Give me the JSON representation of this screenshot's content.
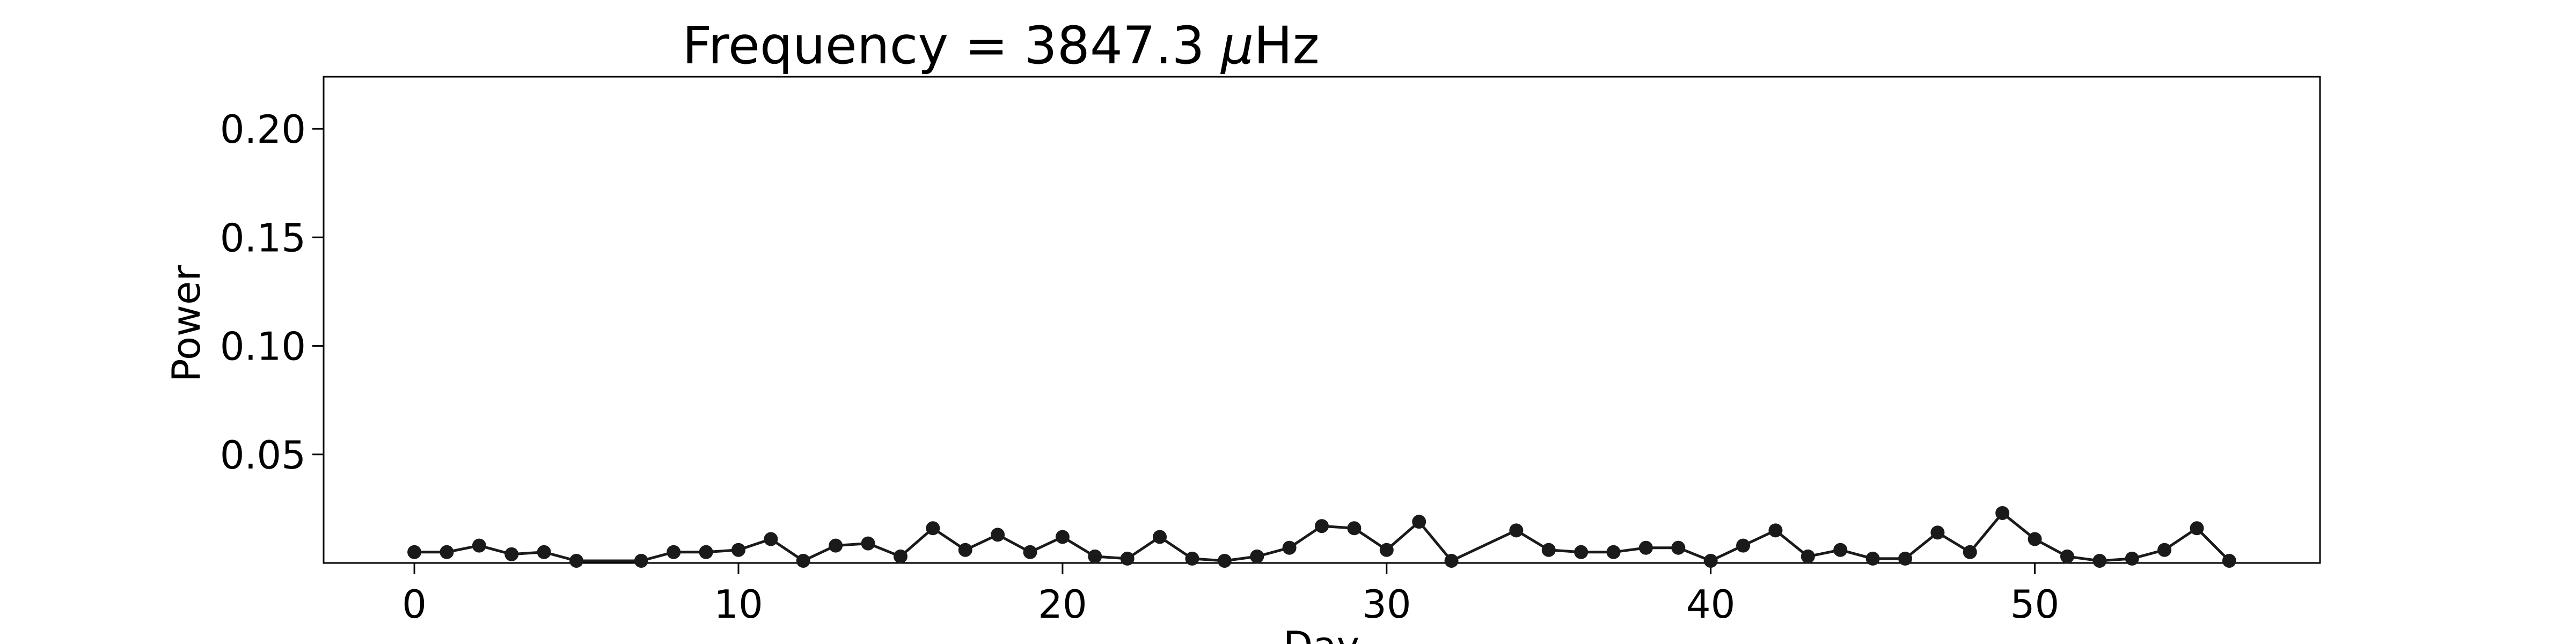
{
  "chart_data": {
    "type": "line",
    "title_prefix": "Frequency = 3847.3 ",
    "title_mu": "μ",
    "title_suffix": "Hz",
    "xlabel": "Day",
    "ylabel": "Power",
    "xlim": [
      -2.8,
      58.8
    ],
    "ylim": [
      0,
      0.224
    ],
    "xticks": [
      0,
      10,
      20,
      30,
      40,
      50
    ],
    "yticks": [
      0.05,
      0.1,
      0.15,
      0.2
    ],
    "xtick_labels": [
      "0",
      "10",
      "20",
      "30",
      "40",
      "50"
    ],
    "ytick_labels": [
      "0.05",
      "0.10",
      "0.15",
      "0.20"
    ],
    "grid": false,
    "line_color": "#1a1a1a",
    "marker_color": "#1a1a1a",
    "series": [
      {
        "x": [
          0,
          1,
          2,
          3,
          4,
          5,
          7,
          8,
          9,
          10,
          11,
          12,
          13,
          14,
          15,
          16,
          17,
          18,
          19,
          20,
          21,
          22,
          23,
          24,
          25,
          26,
          27,
          28,
          29,
          30,
          31,
          32,
          34,
          35,
          36,
          37,
          38,
          39,
          40,
          41,
          42,
          43,
          44,
          45,
          46,
          47,
          48,
          49,
          50,
          51,
          52,
          53,
          54,
          55,
          56
        ],
        "y": [
          0.005,
          0.005,
          0.008,
          0.004,
          0.005,
          0.001,
          0.001,
          0.005,
          0.005,
          0.006,
          0.011,
          0.001,
          0.008,
          0.009,
          0.003,
          0.016,
          0.006,
          0.013,
          0.005,
          0.012,
          0.003,
          0.002,
          0.012,
          0.002,
          0.001,
          0.003,
          0.007,
          0.017,
          0.016,
          0.006,
          0.019,
          0.001,
          0.015,
          0.006,
          0.005,
          0.005,
          0.007,
          0.007,
          0.001,
          0.008,
          0.015,
          0.003,
          0.006,
          0.002,
          0.002,
          0.014,
          0.005,
          0.023,
          0.011,
          0.003,
          0.001,
          0.002,
          0.006,
          0.016,
          0.001
        ]
      }
    ]
  }
}
